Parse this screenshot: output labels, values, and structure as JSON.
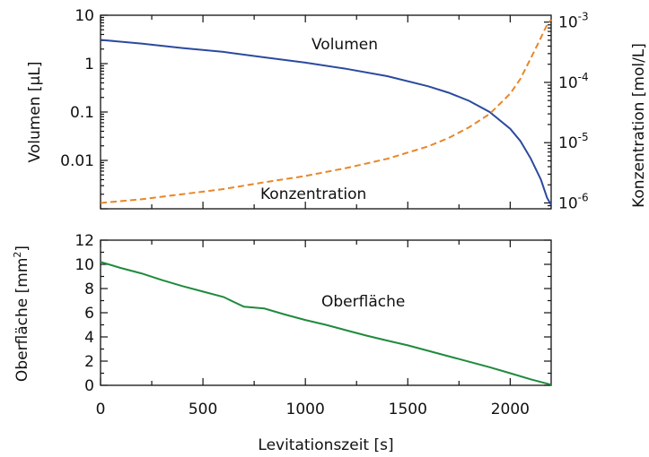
{
  "chart_data": [
    {
      "type": "line",
      "xlabel": "",
      "xlim": [
        0,
        2200
      ],
      "ylabel": "Volumen [µL]",
      "ylim": [
        0.001,
        10
      ],
      "yscale": "log",
      "yticks": [
        "0.01",
        "0.1",
        "1",
        "10"
      ],
      "y2label": "Konzentration [mol/L]",
      "y2lim": [
        8e-07,
        0.0013
      ],
      "y2scale": "log",
      "y2ticks": [
        {
          "base": "10",
          "exp": "-6"
        },
        {
          "base": "10",
          "exp": "-5"
        },
        {
          "base": "10",
          "exp": "-4"
        },
        {
          "base": "10",
          "exp": "-3"
        }
      ],
      "series": [
        {
          "name": "Volumen",
          "axis": "left",
          "color": "#2b4a9e",
          "style": "solid",
          "x": [
            0,
            200,
            400,
            600,
            800,
            1000,
            1200,
            1400,
            1600,
            1700,
            1800,
            1900,
            2000,
            2050,
            2100,
            2150,
            2180,
            2200
          ],
          "y": [
            3.1,
            2.6,
            2.1,
            1.75,
            1.35,
            1.05,
            0.78,
            0.55,
            0.34,
            0.25,
            0.17,
            0.1,
            0.045,
            0.025,
            0.011,
            0.004,
            0.0017,
            0.0012
          ]
        },
        {
          "name": "Konzentration",
          "axis": "right",
          "color": "#e8862a",
          "style": "dashed",
          "x": [
            0,
            200,
            400,
            600,
            800,
            1000,
            1200,
            1400,
            1600,
            1700,
            1800,
            1900,
            2000,
            2050,
            2100,
            2150,
            2180,
            2200
          ],
          "y": [
            1e-06,
            1.15e-06,
            1.4e-06,
            1.7e-06,
            2.2e-06,
            2.8e-06,
            3.8e-06,
            5.4e-06,
            8.7e-06,
            1.2e-05,
            1.8e-05,
            3e-05,
            6.5e-05,
            0.000115,
            0.00025,
            0.00055,
            0.0009,
            0.0011
          ]
        }
      ],
      "annotations": [
        "Volumen",
        "Konzentration"
      ],
      "grid": false,
      "legend": "none"
    },
    {
      "type": "line",
      "xlabel": "Levitationszeit [s]",
      "xlim": [
        0,
        2200
      ],
      "xticks": [
        "0",
        "500",
        "1000",
        "1500",
        "2000"
      ],
      "ylabel": {
        "text": "Oberfläche [mm",
        "sup": "2",
        "close": "]"
      },
      "ylim": [
        0,
        12
      ],
      "yticks": [
        "0",
        "2",
        "4",
        "6",
        "8",
        "10",
        "12"
      ],
      "series": [
        {
          "name": "Oberfläche",
          "color": "#1f8a3c",
          "style": "solid",
          "x": [
            0,
            100,
            200,
            300,
            400,
            500,
            600,
            700,
            800,
            900,
            1000,
            1100,
            1200,
            1300,
            1400,
            1500,
            1600,
            1700,
            1800,
            1900,
            2000,
            2100,
            2200
          ],
          "y": [
            10.2,
            9.7,
            9.25,
            8.7,
            8.2,
            7.75,
            7.3,
            6.5,
            6.35,
            5.85,
            5.4,
            5.0,
            4.55,
            4.1,
            3.7,
            3.3,
            2.85,
            2.4,
            1.95,
            1.5,
            1.0,
            0.5,
            0.05
          ]
        }
      ],
      "annotations": [
        "Oberfläche"
      ],
      "grid": false,
      "legend": "none"
    }
  ]
}
